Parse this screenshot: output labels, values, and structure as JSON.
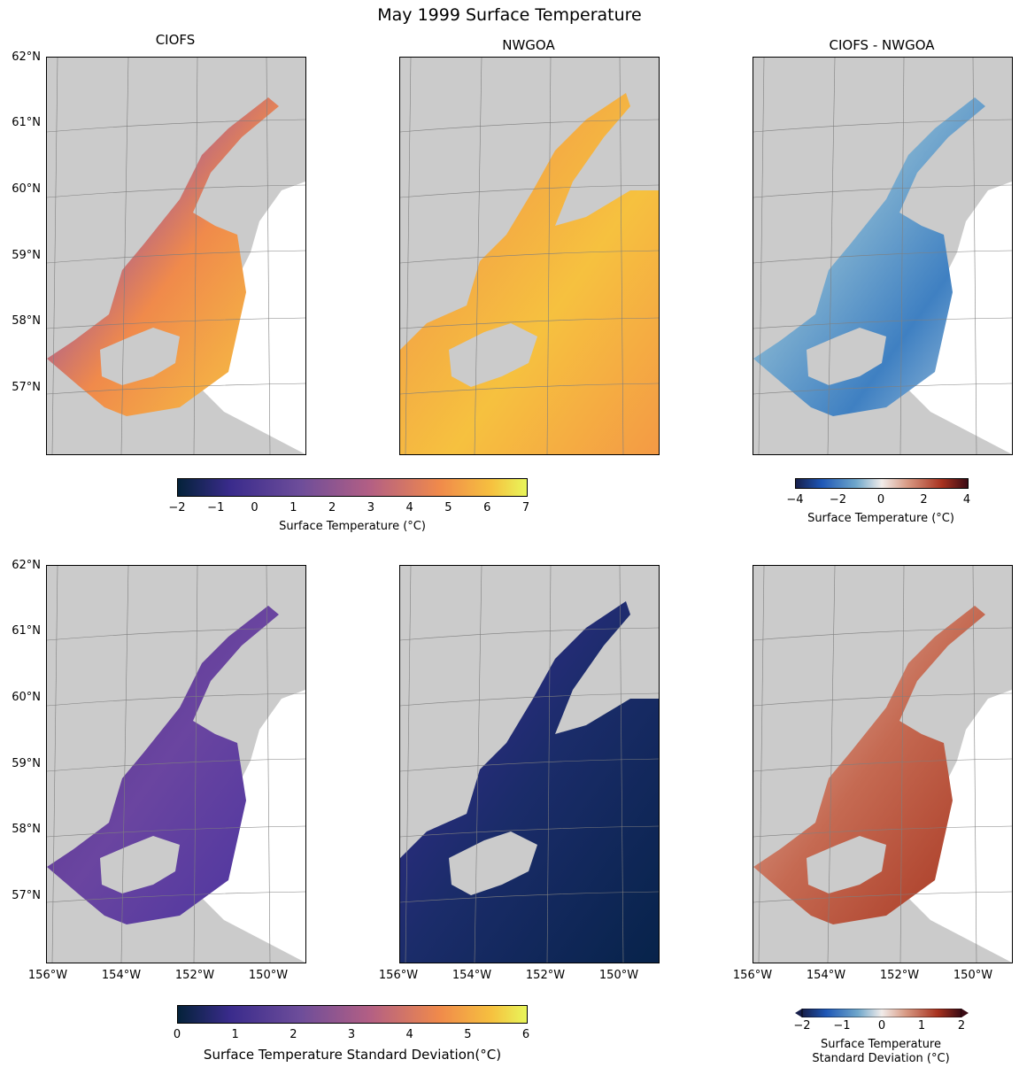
{
  "title": "May 1999 Surface Temperature",
  "panel_titles": [
    "CIOFS",
    "NWGOA",
    "CIOFS - NWGOA"
  ],
  "lat_labels": [
    "62°N",
    "61°N",
    "60°N",
    "59°N",
    "58°N",
    "57°N"
  ],
  "lon_labels": [
    "156°W",
    "154°W",
    "152°W",
    "150°W"
  ],
  "colorbars": {
    "temp": {
      "ticks": [
        "−2",
        "−1",
        "0",
        "1",
        "2",
        "3",
        "4",
        "5",
        "6",
        "7"
      ],
      "label": "Surface Temperature (°C)",
      "range": [
        -2,
        7
      ]
    },
    "temp_diff": {
      "ticks": [
        "−4",
        "−2",
        "0",
        "2",
        "4"
      ],
      "label": "Surface Temperature (°C)",
      "range": [
        -4,
        4
      ]
    },
    "std": {
      "ticks": [
        "0",
        "1",
        "2",
        "3",
        "4",
        "5",
        "6"
      ],
      "label": "Surface Temperature Standard Deviation(°C)",
      "range": [
        0,
        6
      ]
    },
    "std_diff": {
      "ticks": [
        "−2",
        "−1",
        "0",
        "1",
        "2"
      ],
      "label_line1": "Surface Temperature",
      "label_line2": "Standard Deviation (°C)",
      "range": [
        -2,
        2
      ]
    }
  },
  "colors": {
    "land": "#cbcbcb",
    "ocean": "#ffffff",
    "grid": "#7f7f7f"
  }
}
